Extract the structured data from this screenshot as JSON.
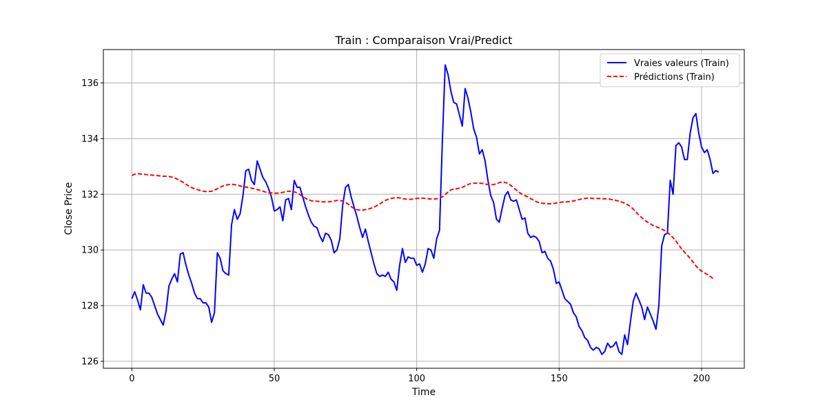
{
  "chart_data": {
    "type": "line",
    "title": "Train : Comparaison Vrai/Predict",
    "xlabel": "Time",
    "ylabel": "Close Price",
    "xlim": [
      -10,
      215
    ],
    "ylim": [
      125.75,
      137.2
    ],
    "xticks": [
      0,
      50,
      100,
      150,
      200
    ],
    "yticks": [
      126,
      128,
      130,
      132,
      134,
      136
    ],
    "grid": true,
    "legend_position": "top-right",
    "series": [
      {
        "name": "Vraies valeurs (Train)",
        "color": "#0000ff",
        "style": "solid",
        "x_start": 0,
        "values": [
          128.25,
          128.5,
          128.2,
          127.85,
          128.75,
          128.45,
          128.45,
          128.3,
          128.0,
          127.7,
          127.5,
          127.3,
          127.8,
          128.7,
          128.95,
          129.15,
          128.85,
          129.85,
          129.9,
          129.45,
          129.1,
          128.8,
          128.45,
          128.25,
          128.25,
          128.1,
          128.1,
          127.95,
          127.4,
          127.75,
          129.9,
          129.7,
          129.25,
          129.15,
          129.1,
          130.9,
          131.45,
          131.1,
          131.3,
          131.95,
          132.85,
          132.9,
          132.5,
          132.35,
          133.2,
          132.9,
          132.6,
          132.45,
          132.2,
          131.9,
          131.4,
          131.45,
          131.55,
          131.05,
          131.8,
          131.85,
          131.45,
          132.5,
          132.25,
          132.25,
          131.9,
          131.55,
          131.25,
          131.0,
          130.85,
          130.8,
          130.5,
          130.3,
          130.6,
          130.55,
          130.35,
          129.9,
          130.0,
          130.4,
          131.6,
          132.25,
          132.35,
          131.9,
          131.55,
          131.2,
          130.8,
          130.45,
          130.75,
          130.3,
          129.9,
          129.5,
          129.15,
          129.05,
          129.1,
          129.05,
          129.2,
          128.95,
          128.85,
          128.55,
          129.45,
          130.05,
          129.55,
          129.75,
          129.7,
          129.7,
          129.45,
          129.5,
          129.2,
          129.5,
          130.05,
          130.0,
          129.7,
          130.4,
          130.7,
          133.9,
          136.65,
          136.3,
          135.7,
          135.3,
          135.25,
          134.85,
          134.45,
          135.8,
          135.45,
          134.95,
          134.35,
          134.05,
          133.45,
          133.6,
          133.2,
          132.5,
          131.95,
          131.7,
          131.1,
          131.0,
          131.5,
          131.95,
          132.1,
          131.8,
          131.75,
          131.8,
          131.45,
          131.1,
          131.15,
          130.6,
          130.45,
          130.5,
          130.45,
          130.3,
          129.9,
          129.95,
          129.7,
          129.6,
          129.3,
          128.8,
          128.85,
          128.55,
          128.25,
          128.15,
          128.05,
          127.75,
          127.6,
          127.25,
          127.1,
          126.85,
          126.75,
          126.5,
          126.4,
          126.5,
          126.45,
          126.25,
          126.35,
          126.65,
          126.5,
          126.55,
          126.7,
          126.35,
          126.25,
          126.95,
          126.6,
          127.4,
          128.15,
          128.45,
          128.2,
          127.95,
          127.5,
          127.95,
          127.7,
          127.45,
          127.15,
          128.0,
          130.15,
          130.55,
          130.6,
          132.5,
          132.0,
          133.75,
          133.85,
          133.7,
          133.25,
          133.25,
          134.2,
          134.75,
          134.9,
          134.2,
          133.7,
          133.5,
          133.6,
          133.25,
          132.75,
          132.85,
          132.8
        ]
      },
      {
        "name": "Prédictions (Train)",
        "color": "#ff0000",
        "style": "dashed",
        "x_start": 0,
        "values": [
          132.68,
          132.72,
          132.74,
          132.73,
          132.72,
          132.71,
          132.7,
          132.69,
          132.68,
          132.67,
          132.66,
          132.65,
          132.65,
          132.64,
          132.62,
          132.59,
          132.54,
          132.49,
          132.43,
          132.36,
          132.29,
          132.24,
          132.2,
          132.17,
          132.14,
          132.11,
          132.1,
          132.1,
          132.11,
          132.15,
          132.2,
          132.25,
          132.3,
          132.33,
          132.35,
          132.36,
          132.35,
          132.33,
          132.3,
          132.28,
          132.26,
          132.24,
          132.22,
          132.2,
          132.17,
          132.14,
          132.11,
          132.08,
          132.06,
          132.05,
          132.04,
          132.04,
          132.05,
          132.07,
          132.09,
          132.11,
          132.11,
          132.09,
          132.05,
          131.99,
          131.92,
          131.85,
          131.8,
          131.77,
          131.76,
          131.75,
          131.74,
          131.73,
          131.73,
          131.73,
          131.74,
          131.76,
          131.78,
          131.78,
          131.76,
          131.71,
          131.64,
          131.56,
          131.49,
          131.45,
          131.43,
          131.43,
          131.45,
          131.47,
          131.5,
          131.54,
          131.59,
          131.65,
          131.72,
          131.78,
          131.82,
          131.85,
          131.87,
          131.88,
          131.87,
          131.85,
          131.83,
          131.82,
          131.82,
          131.83,
          131.85,
          131.86,
          131.86,
          131.85,
          131.84,
          131.83,
          131.83,
          131.84,
          131.86,
          131.91,
          131.99,
          132.08,
          132.16,
          132.19,
          132.2,
          132.22,
          132.25,
          132.3,
          132.35,
          132.39,
          132.4,
          132.4,
          132.4,
          132.39,
          132.37,
          132.35,
          132.34,
          132.35,
          132.38,
          132.42,
          132.44,
          132.43,
          132.39,
          132.32,
          132.24,
          132.15,
          132.07,
          132.0,
          131.95,
          131.91,
          131.85,
          131.79,
          131.73,
          131.7,
          131.68,
          131.67,
          131.66,
          131.66,
          131.67,
          131.69,
          131.7,
          131.72,
          131.73,
          131.73,
          131.74,
          131.76,
          131.78,
          131.81,
          131.83,
          131.85,
          131.86,
          131.86,
          131.85,
          131.85,
          131.85,
          131.84,
          131.84,
          131.83,
          131.82,
          131.8,
          131.78,
          131.75,
          131.72,
          131.68,
          131.63,
          131.56,
          131.47,
          131.36,
          131.25,
          131.16,
          131.08,
          131.0,
          130.94,
          130.88,
          130.84,
          130.8,
          130.75,
          130.7,
          130.63,
          130.54,
          130.44,
          130.32,
          130.18,
          130.04,
          129.92,
          129.81,
          129.7,
          129.57,
          129.43,
          129.32,
          129.24,
          129.18,
          129.12,
          129.05,
          128.98
        ]
      }
    ]
  }
}
